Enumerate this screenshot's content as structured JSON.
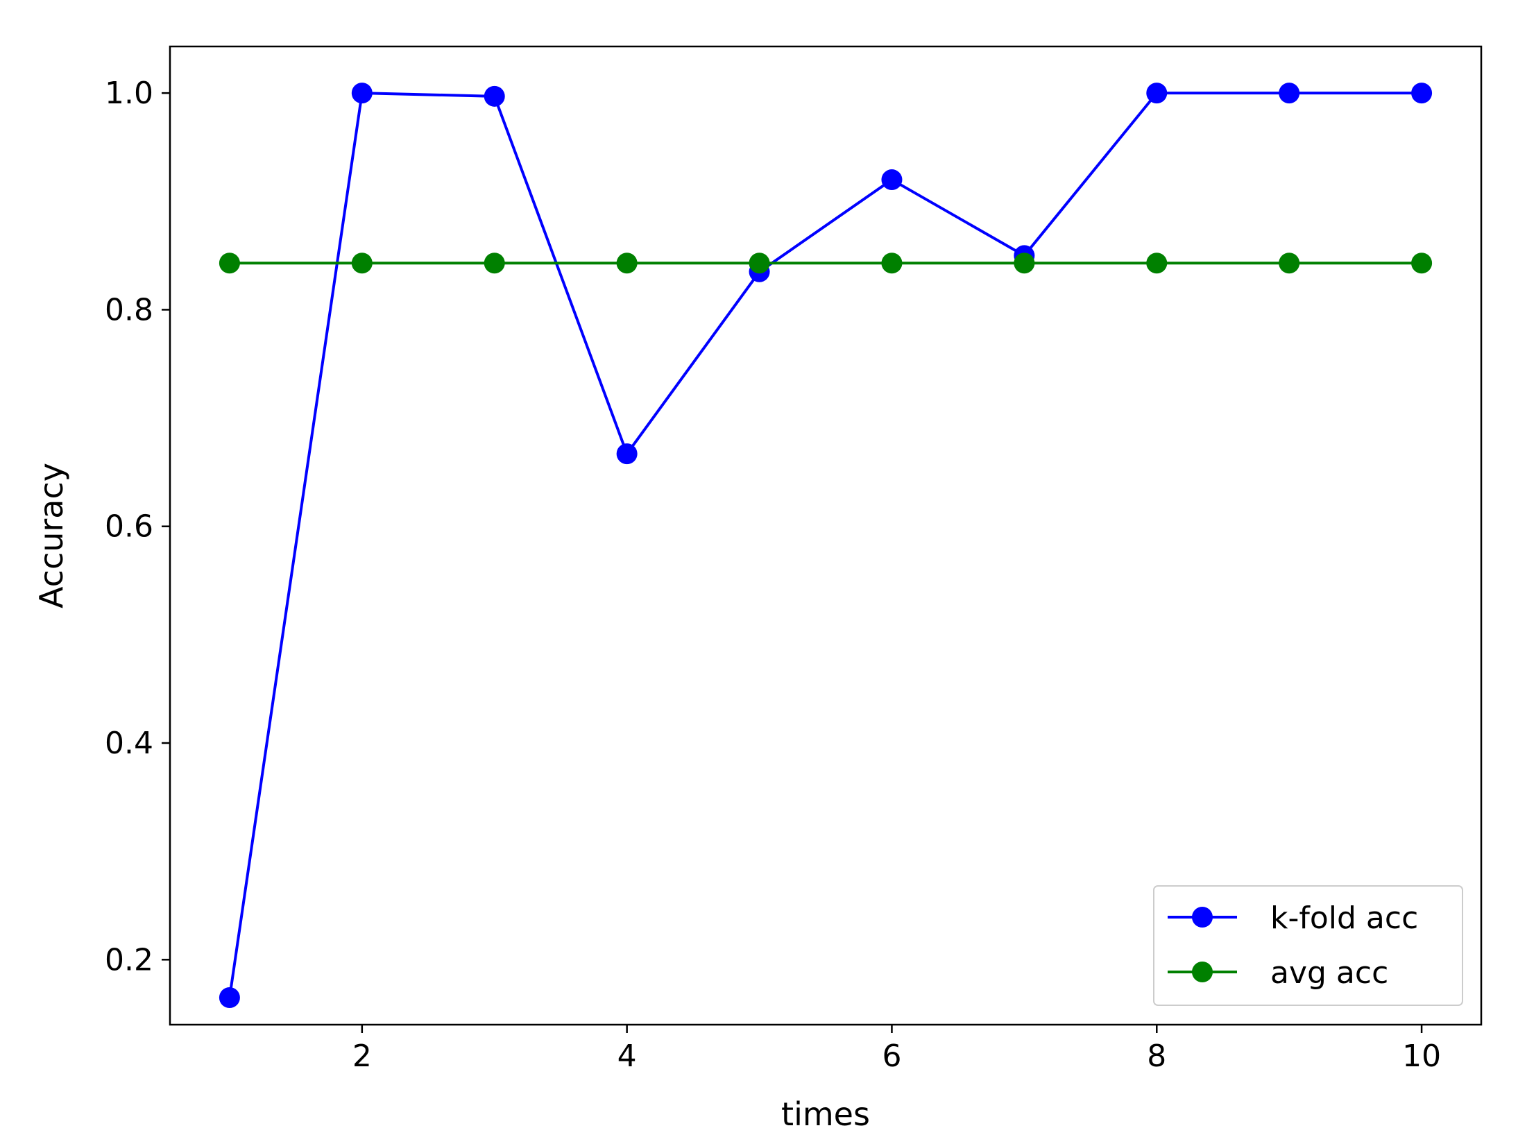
{
  "chart_data": {
    "type": "line",
    "title": "",
    "xlabel": "times",
    "ylabel": "Accuracy",
    "xlim": [
      0.55,
      10.45
    ],
    "ylim": [
      0.14,
      1.043
    ],
    "xticks": [
      2,
      4,
      6,
      8,
      10
    ],
    "xtick_labels": [
      "2",
      "4",
      "6",
      "8",
      "10"
    ],
    "yticks": [
      0.2,
      0.4,
      0.6,
      0.8,
      1.0
    ],
    "ytick_labels": [
      "0.2",
      "0.4",
      "0.6",
      "0.8",
      "1.0"
    ],
    "grid": false,
    "legend_position": "lower-right",
    "x": [
      1,
      2,
      3,
      4,
      5,
      6,
      7,
      8,
      9,
      10
    ],
    "series": [
      {
        "name": "k-fold acc",
        "color": "#0000ff",
        "marker": "circle",
        "values": [
          0.165,
          1.0,
          0.997,
          0.667,
          0.835,
          0.92,
          0.85,
          1.0,
          1.0,
          1.0
        ]
      },
      {
        "name": "avg acc",
        "color": "#008000",
        "marker": "circle",
        "values": [
          0.843,
          0.843,
          0.843,
          0.843,
          0.843,
          0.843,
          0.843,
          0.843,
          0.843,
          0.843
        ]
      }
    ]
  }
}
